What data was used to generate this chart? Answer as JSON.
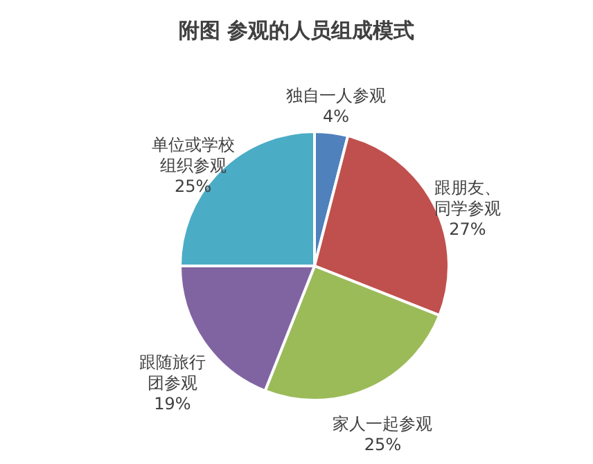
{
  "chart_data": {
    "type": "pie",
    "title": "附图  参观的人员组成模式",
    "categories": [
      "独自一人参观",
      "跟朋友、同学参观",
      "家人一起参观",
      "跟随旅行团参观",
      "单位或学校组织参观"
    ],
    "values": [
      4,
      27,
      25,
      19,
      25
    ],
    "colors": [
      "#4f81bd",
      "#c0504d",
      "#9bbb59",
      "#8064a2",
      "#4bacc6"
    ],
    "value_labels": [
      "4%",
      "27%",
      "25%",
      "19%",
      "25%"
    ]
  }
}
